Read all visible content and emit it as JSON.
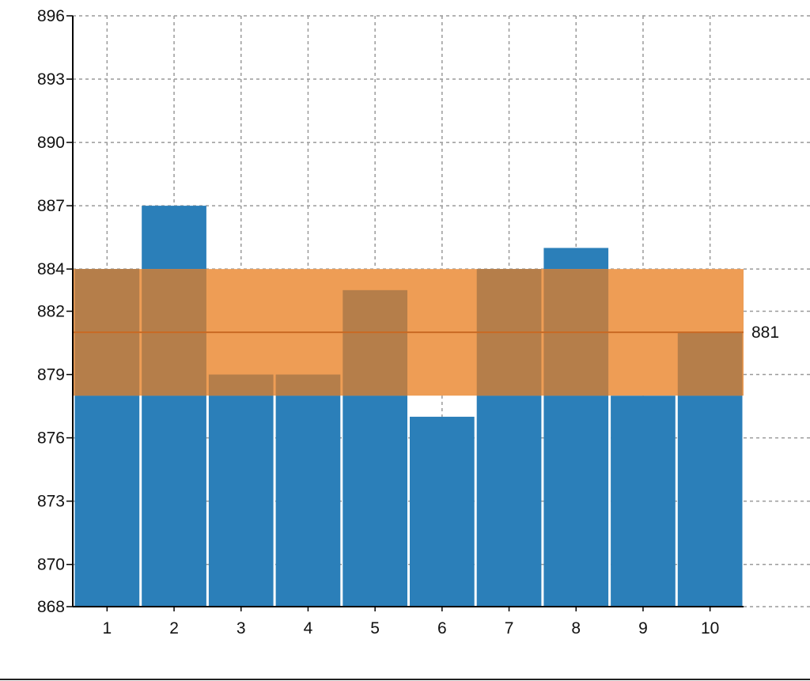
{
  "chart_data": {
    "type": "bar",
    "title": "",
    "xlabel": "",
    "ylabel": "",
    "categories": [
      "1",
      "2",
      "3",
      "4",
      "5",
      "6",
      "7",
      "8",
      "9",
      "10"
    ],
    "values": [
      884,
      887,
      879,
      879,
      883,
      877,
      884,
      885,
      878,
      881
    ],
    "ylim": [
      868,
      896
    ],
    "y_ticks": [
      868,
      870,
      873,
      876,
      879,
      882,
      884,
      887,
      890,
      893,
      896
    ],
    "grid": true,
    "legend": "none",
    "reference_band": {
      "center": 881,
      "label": "881",
      "lower": 878,
      "upper": 884
    },
    "colors": {
      "bar": "#2b7fb9",
      "band": "#ee9d55",
      "band_line": "#c96a24",
      "overlap": "#b57e4a"
    }
  }
}
